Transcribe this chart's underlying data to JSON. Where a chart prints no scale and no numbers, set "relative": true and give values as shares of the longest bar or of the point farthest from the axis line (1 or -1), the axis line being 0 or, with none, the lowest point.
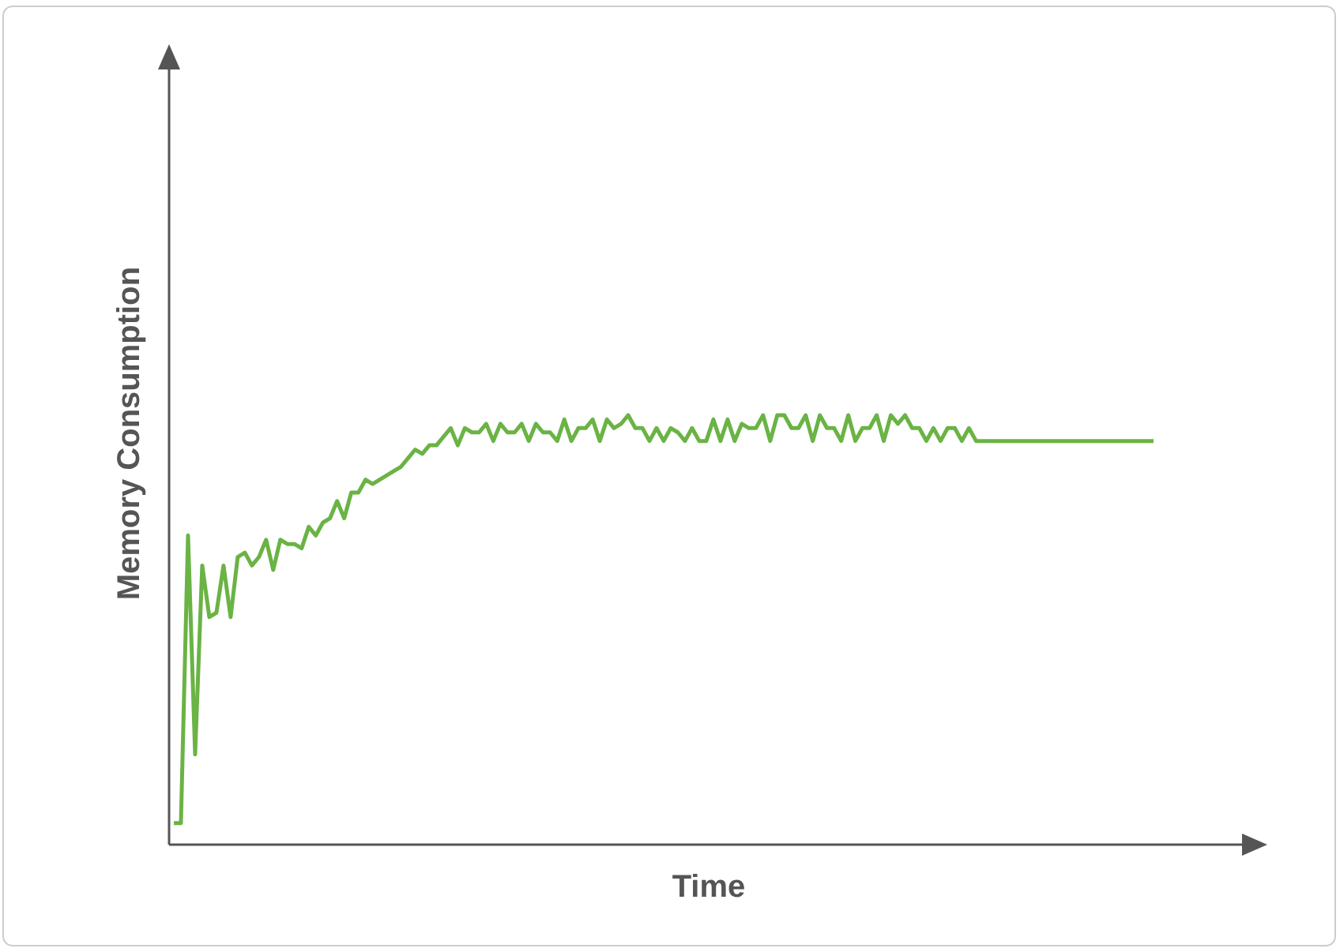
{
  "chart_data": {
    "type": "line",
    "relative": true,
    "xlabel": "Time",
    "ylabel": "Memory Consumption",
    "marker": "none",
    "line_style": "solid",
    "categories": [
      null,
      null,
      null,
      null,
      null,
      null,
      null,
      null,
      null,
      null,
      null,
      null,
      null,
      null,
      null,
      null,
      null,
      null,
      null,
      null,
      null,
      null,
      null,
      null,
      null,
      null,
      null,
      null,
      null,
      null,
      null,
      null,
      null,
      null,
      null,
      null,
      null,
      null,
      null,
      null,
      null,
      null,
      null,
      null,
      null,
      null,
      null,
      null,
      null,
      null,
      null,
      null,
      null,
      null,
      null,
      null,
      null,
      null,
      null,
      null,
      null,
      null,
      null,
      null,
      null,
      null,
      null,
      null,
      null,
      null,
      null,
      null,
      null,
      null,
      null,
      null,
      null,
      null,
      null,
      null,
      null,
      null,
      null,
      null,
      null,
      null,
      null,
      null,
      null,
      null,
      null,
      null,
      null,
      null,
      null,
      null,
      null,
      null,
      null,
      null,
      null,
      null,
      null,
      null,
      null,
      null,
      null,
      null,
      null,
      null,
      null,
      null,
      null,
      null,
      null,
      null,
      null,
      null,
      null,
      null,
      null,
      null,
      null,
      null,
      null,
      null,
      null,
      null,
      null,
      null,
      null,
      null,
      null,
      null,
      null,
      null,
      null,
      null,
      null
    ],
    "series": [
      {
        "color": "#6ab344",
        "values": [
          0.05,
          0.05,
          0.72,
          0.21,
          0.65,
          0.53,
          0.54,
          0.65,
          0.53,
          0.67,
          0.68,
          0.65,
          0.67,
          0.71,
          0.64,
          0.71,
          0.7,
          0.7,
          0.69,
          0.74,
          0.72,
          0.75,
          0.76,
          0.8,
          0.76,
          0.82,
          0.82,
          0.85,
          0.84,
          0.85,
          0.86,
          0.87,
          0.88,
          0.9,
          0.92,
          0.91,
          0.93,
          0.93,
          0.95,
          0.97,
          0.93,
          0.97,
          0.96,
          0.96,
          0.98,
          0.94,
          0.98,
          0.96,
          0.96,
          0.98,
          0.94,
          0.98,
          0.96,
          0.96,
          0.94,
          0.99,
          0.94,
          0.97,
          0.97,
          0.99,
          0.94,
          0.99,
          0.97,
          0.98,
          1,
          0.97,
          0.97,
          0.94,
          0.97,
          0.94,
          0.97,
          0.96,
          0.94,
          0.97,
          0.94,
          0.94,
          0.99,
          0.94,
          0.99,
          0.94,
          0.98,
          0.97,
          0.97,
          1,
          0.94,
          1,
          1,
          0.97,
          0.97,
          1,
          0.94,
          1,
          0.97,
          0.97,
          0.94,
          1,
          0.94,
          0.97,
          0.97,
          1,
          0.94,
          1,
          0.98,
          1,
          0.97,
          0.97,
          0.94,
          0.97,
          0.94,
          0.97,
          0.97,
          0.94,
          0.97,
          0.94,
          0.94,
          0.94,
          0.94,
          0.94,
          0.94,
          0.94,
          0.94,
          0.94,
          0.94,
          0.94,
          0.94,
          0.94,
          0.94,
          0.94,
          0.94,
          0.94,
          0.94,
          0.94,
          0.94,
          0.94,
          0.94,
          0.94,
          0.94,
          0.94,
          0.94
        ]
      }
    ]
  }
}
